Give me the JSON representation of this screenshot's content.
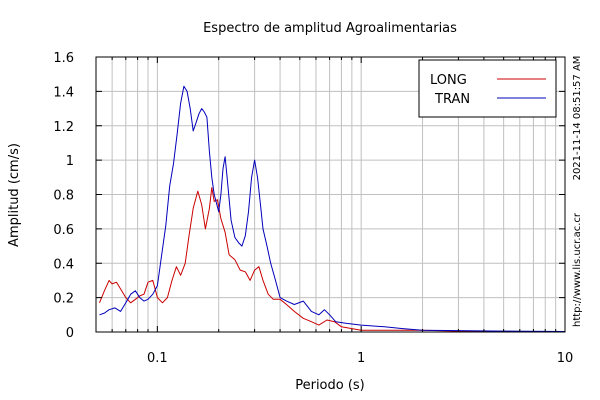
{
  "chart_data": {
    "type": "line",
    "title": "Espectro de amplitud Agroalimentarias",
    "xlabel": "Periodo (s)",
    "ylabel": "Amplitud (cm/s)",
    "x_scale": "log",
    "xlim": [
      0.05,
      10
    ],
    "ylim": [
      0,
      1.6
    ],
    "x_ticks": [
      {
        "value": 0.1,
        "label": "0.1"
      },
      {
        "value": 1,
        "label": "1"
      },
      {
        "value": 10,
        "label": "10"
      }
    ],
    "y_ticks": [
      {
        "value": 0,
        "label": "0"
      },
      {
        "value": 0.2,
        "label": "0.2"
      },
      {
        "value": 0.4,
        "label": "0.4"
      },
      {
        "value": 0.6,
        "label": "0.6"
      },
      {
        "value": 0.8,
        "label": "0.8"
      },
      {
        "value": 1.0,
        "label": "1"
      },
      {
        "value": 1.2,
        "label": "1.2"
      },
      {
        "value": 1.4,
        "label": "1.4"
      },
      {
        "value": 1.6,
        "label": "1.6"
      }
    ],
    "grid": true,
    "legend_position": "top-right",
    "side_notes": [
      "2021-11-14 08:51:57 AM",
      "http://www.lis.ucr.ac.cr"
    ],
    "series": [
      {
        "name": "LONG",
        "color": "#cc0000",
        "points": [
          [
            0.052,
            0.17
          ],
          [
            0.055,
            0.24
          ],
          [
            0.058,
            0.3
          ],
          [
            0.06,
            0.28
          ],
          [
            0.063,
            0.29
          ],
          [
            0.066,
            0.25
          ],
          [
            0.07,
            0.2
          ],
          [
            0.074,
            0.17
          ],
          [
            0.078,
            0.19
          ],
          [
            0.082,
            0.21
          ],
          [
            0.086,
            0.22
          ],
          [
            0.09,
            0.29
          ],
          [
            0.095,
            0.3
          ],
          [
            0.1,
            0.2
          ],
          [
            0.106,
            0.17
          ],
          [
            0.112,
            0.2
          ],
          [
            0.118,
            0.3
          ],
          [
            0.124,
            0.38
          ],
          [
            0.13,
            0.33
          ],
          [
            0.137,
            0.4
          ],
          [
            0.143,
            0.56
          ],
          [
            0.15,
            0.72
          ],
          [
            0.158,
            0.82
          ],
          [
            0.165,
            0.74
          ],
          [
            0.172,
            0.6
          ],
          [
            0.18,
            0.72
          ],
          [
            0.185,
            0.84
          ],
          [
            0.19,
            0.76
          ],
          [
            0.197,
            0.77
          ],
          [
            0.205,
            0.66
          ],
          [
            0.215,
            0.58
          ],
          [
            0.225,
            0.45
          ],
          [
            0.24,
            0.42
          ],
          [
            0.255,
            0.36
          ],
          [
            0.27,
            0.35
          ],
          [
            0.285,
            0.3
          ],
          [
            0.3,
            0.36
          ],
          [
            0.315,
            0.38
          ],
          [
            0.33,
            0.3
          ],
          [
            0.35,
            0.22
          ],
          [
            0.37,
            0.19
          ],
          [
            0.4,
            0.19
          ],
          [
            0.43,
            0.16
          ],
          [
            0.47,
            0.12
          ],
          [
            0.52,
            0.08
          ],
          [
            0.57,
            0.06
          ],
          [
            0.62,
            0.04
          ],
          [
            0.68,
            0.07
          ],
          [
            0.74,
            0.06
          ],
          [
            0.8,
            0.03
          ],
          [
            0.9,
            0.02
          ],
          [
            1.0,
            0.01
          ],
          [
            1.2,
            0.01
          ],
          [
            1.5,
            0.01
          ],
          [
            2.0,
            0.01
          ],
          [
            3.0,
            0.005
          ],
          [
            5.0,
            0.004
          ],
          [
            7.0,
            0.003
          ],
          [
            10.0,
            0.002
          ]
        ]
      },
      {
        "name": "TRAN",
        "color": "#0000bb",
        "points": [
          [
            0.052,
            0.1
          ],
          [
            0.055,
            0.11
          ],
          [
            0.058,
            0.13
          ],
          [
            0.062,
            0.14
          ],
          [
            0.066,
            0.12
          ],
          [
            0.07,
            0.17
          ],
          [
            0.074,
            0.22
          ],
          [
            0.078,
            0.24
          ],
          [
            0.082,
            0.2
          ],
          [
            0.086,
            0.18
          ],
          [
            0.09,
            0.19
          ],
          [
            0.095,
            0.22
          ],
          [
            0.1,
            0.27
          ],
          [
            0.105,
            0.45
          ],
          [
            0.11,
            0.62
          ],
          [
            0.115,
            0.85
          ],
          [
            0.12,
            0.98
          ],
          [
            0.125,
            1.15
          ],
          [
            0.13,
            1.33
          ],
          [
            0.135,
            1.43
          ],
          [
            0.14,
            1.4
          ],
          [
            0.145,
            1.3
          ],
          [
            0.15,
            1.17
          ],
          [
            0.155,
            1.22
          ],
          [
            0.16,
            1.27
          ],
          [
            0.165,
            1.3
          ],
          [
            0.17,
            1.28
          ],
          [
            0.175,
            1.25
          ],
          [
            0.18,
            1.05
          ],
          [
            0.185,
            0.9
          ],
          [
            0.19,
            0.8
          ],
          [
            0.2,
            0.7
          ],
          [
            0.205,
            0.8
          ],
          [
            0.21,
            0.95
          ],
          [
            0.215,
            1.02
          ],
          [
            0.22,
            0.9
          ],
          [
            0.23,
            0.65
          ],
          [
            0.24,
            0.55
          ],
          [
            0.25,
            0.52
          ],
          [
            0.26,
            0.5
          ],
          [
            0.27,
            0.56
          ],
          [
            0.28,
            0.7
          ],
          [
            0.29,
            0.9
          ],
          [
            0.3,
            1.0
          ],
          [
            0.31,
            0.9
          ],
          [
            0.32,
            0.75
          ],
          [
            0.33,
            0.6
          ],
          [
            0.345,
            0.5
          ],
          [
            0.36,
            0.4
          ],
          [
            0.38,
            0.3
          ],
          [
            0.4,
            0.2
          ],
          [
            0.43,
            0.18
          ],
          [
            0.47,
            0.16
          ],
          [
            0.52,
            0.18
          ],
          [
            0.57,
            0.12
          ],
          [
            0.62,
            0.1
          ],
          [
            0.66,
            0.13
          ],
          [
            0.7,
            0.1
          ],
          [
            0.75,
            0.06
          ],
          [
            0.85,
            0.05
          ],
          [
            1.0,
            0.04
          ],
          [
            1.3,
            0.03
          ],
          [
            1.6,
            0.02
          ],
          [
            2.0,
            0.01
          ],
          [
            3.0,
            0.008
          ],
          [
            5.0,
            0.005
          ],
          [
            10.0,
            0.003
          ]
        ]
      }
    ]
  }
}
